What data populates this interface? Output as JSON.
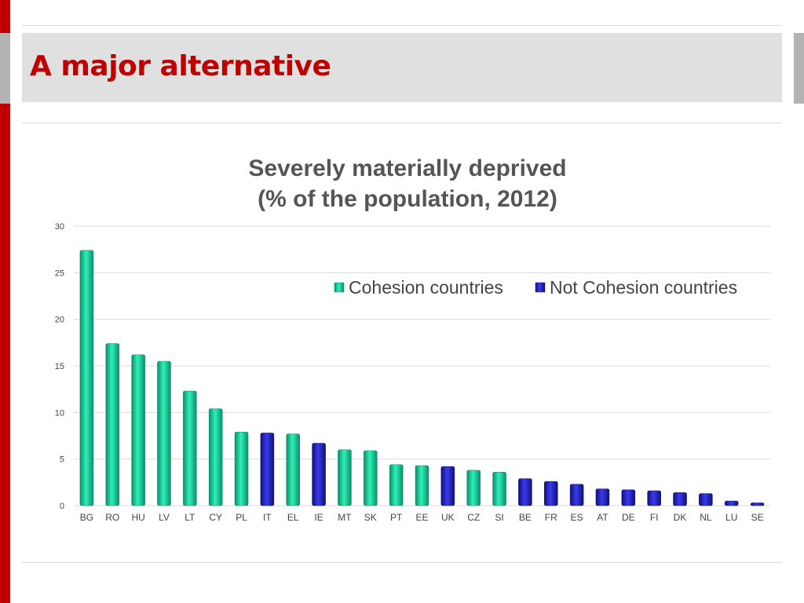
{
  "slide": {
    "title": "A major alternative"
  },
  "colors": {
    "accent": "#c00000",
    "cohesion": "#1ec99a",
    "not_cohesion": "#2222cc"
  },
  "chart_data": {
    "type": "bar",
    "title_lines": [
      "Severely materially deprived",
      "(% of the population, 2012)"
    ],
    "xlabel": "",
    "ylabel": "",
    "ylim": [
      0,
      30
    ],
    "yticks": [
      0,
      5,
      10,
      15,
      20,
      25,
      30
    ],
    "grid": true,
    "legend_position": "top-right",
    "legend": [
      "Cohesion countries",
      "Not Cohesion countries"
    ],
    "categories": [
      "BG",
      "RO",
      "HU",
      "LV",
      "LT",
      "CY",
      "PL",
      "IT",
      "EL",
      "IE",
      "MT",
      "SK",
      "PT",
      "EE",
      "UK",
      "CZ",
      "SI",
      "BE",
      "FR",
      "ES",
      "AT",
      "DE",
      "FI",
      "DK",
      "NL",
      "LU",
      "SE"
    ],
    "values": [
      27.4,
      17.4,
      16.2,
      15.5,
      12.3,
      10.4,
      7.9,
      7.8,
      7.7,
      6.7,
      6.0,
      5.9,
      4.4,
      4.3,
      4.2,
      3.8,
      3.6,
      2.9,
      2.6,
      2.3,
      1.8,
      1.7,
      1.6,
      1.4,
      1.3,
      0.5,
      0.3
    ],
    "group": [
      "cohesion",
      "cohesion",
      "cohesion",
      "cohesion",
      "cohesion",
      "cohesion",
      "cohesion",
      "not",
      "cohesion",
      "not",
      "cohesion",
      "cohesion",
      "cohesion",
      "cohesion",
      "not",
      "cohesion",
      "cohesion",
      "not",
      "not",
      "not",
      "not",
      "not",
      "not",
      "not",
      "not",
      "not",
      "not"
    ]
  }
}
